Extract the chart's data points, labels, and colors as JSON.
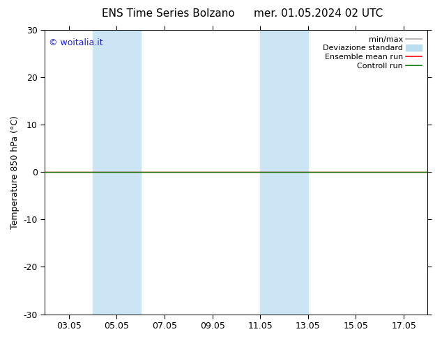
{
  "title_left": "ENS Time Series Bolzano",
  "title_right": "mer. 01.05.2024 02 UTC",
  "ylabel": "Temperature 850 hPa (°C)",
  "ylim": [
    -30,
    30
  ],
  "yticks": [
    -30,
    -20,
    -10,
    0,
    10,
    20,
    30
  ],
  "ytick_labels": [
    "-30",
    "-20",
    "-10",
    "0",
    "10",
    "20",
    "30"
  ],
  "xtick_labels": [
    "03.05",
    "05.05",
    "07.05",
    "09.05",
    "11.05",
    "13.05",
    "15.05",
    "17.05"
  ],
  "xtick_positions": [
    3,
    5,
    7,
    9,
    11,
    13,
    15,
    17
  ],
  "xmin": 2,
  "xmax": 18,
  "shaded_bands": [
    {
      "xstart": 4.0,
      "xend": 6.0
    },
    {
      "xstart": 11.0,
      "xend": 13.0
    }
  ],
  "control_run_y": 0,
  "ensemble_mean_y": 0,
  "watermark": "© woitalia.it",
  "watermark_color": "#2222cc",
  "bg_color": "#ffffff",
  "shade_color": "#cce5f5",
  "control_run_color": "#007700",
  "ensemble_mean_color": "#ff0000",
  "minmax_color": "#aaaaaa",
  "std_color": "#bbddf0",
  "legend_labels": [
    "min/max",
    "Deviazione standard",
    "Ensemble mean run",
    "Controll run"
  ],
  "figsize": [
    6.34,
    4.9
  ],
  "dpi": 100,
  "title_fontsize": 11,
  "ylabel_fontsize": 9,
  "tick_fontsize": 9,
  "watermark_fontsize": 9,
  "legend_fontsize": 8
}
